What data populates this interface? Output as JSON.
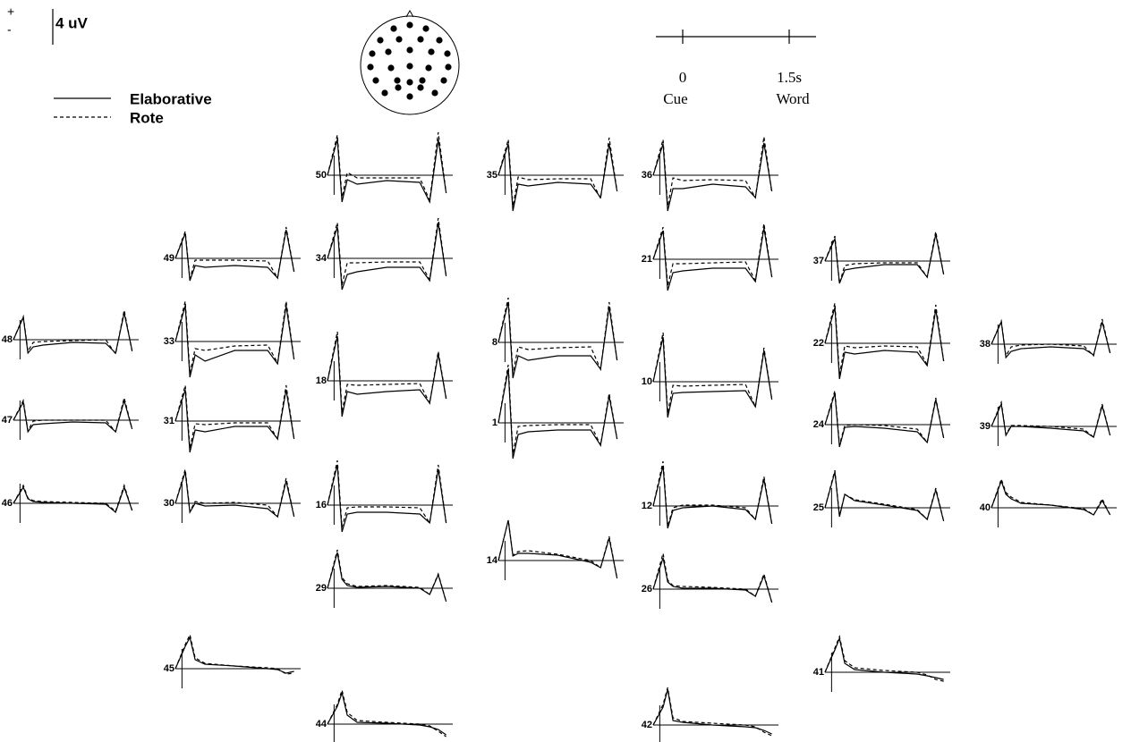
{
  "chart_data": {
    "type": "erp",
    "plus_label": "+",
    "minus_label": "-",
    "scale_label": "4 uV",
    "time_labels": [
      "0",
      "1.5s"
    ],
    "event_labels": [
      "Cue",
      "Word"
    ],
    "series": [
      {
        "name": "Elaborative",
        "color": "#000",
        "dash": "none"
      },
      {
        "name": "Rote",
        "color": "#000",
        "dash": "4 3"
      }
    ],
    "x": [
      -0.1,
      0.05,
      0.12,
      0.2,
      0.35,
      0.8,
      1.3,
      1.45,
      1.58,
      1.7
    ],
    "channels": [
      {
        "label": "50",
        "elaborative": [
          0,
          4,
          -3,
          -0.5,
          -1,
          -0.6,
          -0.8,
          -3,
          4,
          -2
        ],
        "rote": [
          0,
          4.5,
          -2.5,
          0.3,
          -0.3,
          -0.3,
          -0.3,
          -2.8,
          4.8,
          -2
        ]
      },
      {
        "label": "35",
        "elaborative": [
          0,
          3.5,
          -4,
          -1,
          -1.2,
          -0.8,
          -1,
          -2.5,
          3.5,
          -1.8
        ],
        "rote": [
          0,
          4,
          -3.5,
          -0.2,
          -0.5,
          -0.4,
          -0.4,
          -2.6,
          4.2,
          -1.8
        ]
      },
      {
        "label": "36",
        "elaborative": [
          0,
          3.5,
          -4,
          -1.5,
          -1.5,
          -1,
          -1.3,
          -2.5,
          3.6,
          -1.8
        ],
        "rote": [
          0,
          4,
          -3.5,
          -0.3,
          -0.6,
          -0.5,
          -0.6,
          -2.5,
          4.3,
          -2
        ]
      },
      {
        "label": "49",
        "elaborative": [
          0,
          2.8,
          -2.5,
          -0.8,
          -1,
          -0.8,
          -1,
          -2.2,
          3.2,
          -1.5
        ],
        "rote": [
          0,
          3,
          -2.3,
          -0.2,
          -0.2,
          -0.2,
          -0.3,
          -2.2,
          3.5,
          -1.5
        ]
      },
      {
        "label": "34",
        "elaborative": [
          0,
          3.5,
          -3.5,
          -1.8,
          -1.5,
          -1,
          -1,
          -2.5,
          4,
          -2
        ],
        "rote": [
          0,
          4,
          -3,
          -0.5,
          -0.5,
          -0.4,
          -0.4,
          -2.4,
          4.5,
          -2
        ]
      },
      {
        "label": "21",
        "elaborative": [
          0,
          3.2,
          -3.5,
          -1.5,
          -1.3,
          -1,
          -1,
          -2.5,
          3.5,
          -2
        ],
        "rote": [
          0,
          3.6,
          -3,
          -0.5,
          -0.5,
          -0.4,
          -0.3,
          -2.4,
          4,
          -2
        ]
      },
      {
        "label": "37",
        "elaborative": [
          0,
          2.5,
          -2.5,
          -1,
          -0.8,
          -0.4,
          -0.4,
          -1.8,
          3,
          -1.5
        ],
        "rote": [
          0,
          2.8,
          -2.5,
          -0.5,
          -0.3,
          -0.2,
          -0.2,
          -1.8,
          3.3,
          -1.5
        ]
      },
      {
        "label": "48",
        "elaborative": [
          0,
          2.5,
          -1.5,
          -0.8,
          -0.6,
          -0.3,
          -0.4,
          -1.5,
          3,
          -1.2
        ],
        "rote": [
          0,
          2.6,
          -1.3,
          -0.3,
          -0.2,
          -0.1,
          0,
          -1.6,
          3.3,
          -1.3
        ]
      },
      {
        "label": "33",
        "elaborative": [
          0,
          4,
          -4,
          -1.5,
          -2.2,
          -1,
          -1,
          -2.5,
          4,
          -2
        ],
        "rote": [
          0,
          4.5,
          -3.5,
          -0.8,
          -1,
          -0.5,
          -0.4,
          -2.4,
          4.5,
          -2
        ]
      },
      {
        "label": "8",
        "elaborative": [
          0,
          4.5,
          -4,
          -1.5,
          -2,
          -1.5,
          -1.5,
          -3,
          4,
          -2
        ],
        "rote": [
          0,
          5,
          -3.5,
          -0.5,
          -0.8,
          -0.6,
          -0.5,
          -3,
          4.5,
          -2
        ]
      },
      {
        "label": "22",
        "elaborative": [
          0,
          4,
          -4,
          -1,
          -1.2,
          -0.8,
          -1,
          -2.5,
          3.8,
          -2
        ],
        "rote": [
          0,
          4.5,
          -3.5,
          -0.3,
          -0.5,
          -0.3,
          -0.4,
          -2.4,
          4.3,
          -2
        ]
      },
      {
        "label": "38",
        "elaborative": [
          0,
          2.5,
          -1.5,
          -0.8,
          -0.5,
          -0.3,
          -0.5,
          -1.2,
          2.5,
          -1
        ],
        "rote": [
          0,
          2.6,
          -1.3,
          -0.3,
          -0.1,
          0,
          -0.2,
          -1.3,
          2.8,
          -1
        ]
      },
      {
        "label": "18",
        "elaborative": [
          0,
          5,
          -4,
          -1.2,
          -1.5,
          -1.2,
          -1,
          -2.5,
          3,
          -2
        ],
        "rote": [
          0,
          5.5,
          -3.5,
          -0.4,
          -0.5,
          -0.4,
          -0.3,
          -2.5,
          3.3,
          -2
        ]
      },
      {
        "label": "10",
        "elaborative": [
          0,
          5,
          -4,
          -1.3,
          -1.2,
          -1.1,
          -1,
          -2.8,
          3.5,
          -2
        ],
        "rote": [
          0,
          5.5,
          -3.5,
          -0.4,
          -0.5,
          -0.4,
          -0.3,
          -2.8,
          3.8,
          -2
        ]
      },
      {
        "label": "47",
        "elaborative": [
          0,
          2,
          -1.3,
          -0.5,
          -0.4,
          -0.2,
          -0.3,
          -1.3,
          2.2,
          -1
        ],
        "rote": [
          0,
          2.2,
          -1.2,
          -0.1,
          0,
          0,
          0,
          -1.3,
          2.5,
          -1
        ]
      },
      {
        "label": "31",
        "elaborative": [
          0,
          3.5,
          -3.5,
          -1,
          -1.2,
          -0.6,
          -0.6,
          -2,
          3.5,
          -2
        ],
        "rote": [
          0,
          4,
          -3,
          -0.3,
          -0.4,
          -0.2,
          -0.2,
          -2,
          4,
          -2
        ]
      },
      {
        "label": "1",
        "elaborative": [
          0,
          6,
          -4,
          -1.3,
          -1,
          -0.8,
          -0.8,
          -2.5,
          3,
          -1.8
        ],
        "rote": [
          0,
          6.5,
          -3.5,
          -0.4,
          -0.3,
          -0.2,
          -0.2,
          -2.5,
          3.3,
          -1.8
        ]
      },
      {
        "label": "24",
        "elaborative": [
          0,
          3.5,
          -2.5,
          -0.3,
          -0.2,
          -0.4,
          -0.8,
          -2,
          2.8,
          -1.5
        ],
        "rote": [
          0,
          3.8,
          -2.3,
          -0.1,
          0,
          -0.1,
          -0.5,
          -2,
          3,
          -1.5
        ]
      },
      {
        "label": "39",
        "elaborative": [
          0,
          2.5,
          -1,
          0,
          0,
          -0.2,
          -0.5,
          -1.2,
          2.3,
          -1
        ],
        "rote": [
          0,
          2.7,
          -0.9,
          0.1,
          0.1,
          0,
          -0.3,
          -1.2,
          2.5,
          -1
        ]
      },
      {
        "label": "46",
        "elaborative": [
          0,
          1.8,
          0.5,
          0.2,
          0.1,
          0,
          -0.1,
          -1,
          1.8,
          -0.8
        ],
        "rote": [
          0,
          2,
          0.6,
          0.3,
          0.2,
          0.1,
          0,
          -0.9,
          2,
          -0.8
        ]
      },
      {
        "label": "30",
        "elaborative": [
          0,
          3.5,
          -1,
          0,
          -0.3,
          -0.2,
          -0.6,
          -1.5,
          2.5,
          -1.5
        ],
        "rote": [
          0,
          3.8,
          -0.9,
          0.2,
          0,
          0.1,
          -0.2,
          -1.5,
          2.8,
          -1.5
        ]
      },
      {
        "label": "16",
        "elaborative": [
          0,
          4.5,
          -3,
          -1,
          -0.8,
          -0.8,
          -1,
          -2,
          4,
          -2
        ],
        "rote": [
          0,
          5,
          -2.5,
          -0.3,
          -0.2,
          -0.2,
          -0.3,
          -2,
          4.5,
          -2
        ]
      },
      {
        "label": "12",
        "elaborative": [
          0,
          4.5,
          -2.5,
          -0.5,
          -0.2,
          0,
          -0.4,
          -1.5,
          3,
          -2
        ],
        "rote": [
          0,
          5,
          -2.3,
          -0.2,
          0.1,
          0.1,
          -0.2,
          -1.5,
          3.3,
          -2
        ]
      },
      {
        "label": "25",
        "elaborative": [
          0,
          4,
          -1,
          1.5,
          0.8,
          0.3,
          -0.3,
          -1.3,
          2,
          -1.5
        ],
        "rote": [
          0,
          4.2,
          -0.9,
          1.5,
          0.9,
          0.4,
          -0.2,
          -1.3,
          2.2,
          -1.5
        ]
      },
      {
        "label": "40",
        "elaborative": [
          0,
          3,
          1.5,
          1,
          0.5,
          0.3,
          -0.2,
          -0.8,
          0.8,
          -0.8
        ],
        "rote": [
          0,
          3.2,
          1.7,
          1.2,
          0.6,
          0.3,
          -0.1,
          -0.8,
          1,
          -0.8
        ]
      },
      {
        "label": "14",
        "elaborative": [
          0,
          4.5,
          0.5,
          0.8,
          0.8,
          0.6,
          -0.2,
          -0.8,
          2.5,
          -2
        ],
        "rote": [
          0,
          4.5,
          0.6,
          1,
          1.1,
          0.7,
          0,
          -0.8,
          2.7,
          -2
        ]
      },
      {
        "label": "29",
        "elaborative": [
          0,
          4,
          1,
          0.3,
          0.1,
          0.2,
          0,
          -0.7,
          1.5,
          -1.5
        ],
        "rote": [
          0,
          4.3,
          1.2,
          0.5,
          0.2,
          0.3,
          0.1,
          -0.7,
          1.6,
          -1.5
        ]
      },
      {
        "label": "26",
        "elaborative": [
          0,
          3.5,
          0.8,
          0.3,
          0.1,
          0.1,
          -0.1,
          -0.8,
          1.5,
          -1.5
        ],
        "rote": [
          0,
          4,
          1,
          0.4,
          0.3,
          0.2,
          0,
          -0.8,
          1.7,
          -1.5
        ]
      },
      {
        "label": "45",
        "elaborative": [
          0,
          2.5,
          3.5,
          1,
          0.5,
          0.3,
          0,
          -0.1,
          -0.5,
          -0.3
        ],
        "rote": [
          0,
          2.7,
          3.8,
          1.2,
          0.6,
          0.3,
          0.1,
          0,
          -0.6,
          -0.5
        ]
      },
      {
        "label": "41",
        "elaborative": [
          0,
          2.5,
          3.8,
          1,
          0.3,
          0,
          -0.2,
          -0.4,
          -0.6,
          -0.8
        ],
        "rote": [
          0,
          2.7,
          4,
          1.3,
          0.5,
          0.2,
          0,
          -0.3,
          -0.8,
          -1
        ]
      },
      {
        "label": "44",
        "elaborative": [
          0,
          2,
          3.5,
          1,
          0.2,
          0.1,
          -0.1,
          -0.3,
          -0.6,
          -1.2
        ],
        "rote": [
          0,
          2.2,
          3.8,
          1.3,
          0.4,
          0.2,
          0,
          -0.2,
          -0.8,
          -1.4
        ]
      },
      {
        "label": "42",
        "elaborative": [
          0,
          2,
          4,
          0.5,
          0.3,
          0,
          -0.2,
          -0.3,
          -0.6,
          -1
        ],
        "rote": [
          0,
          2.3,
          4.2,
          0.8,
          0.4,
          0.2,
          0,
          -0.2,
          -0.8,
          -1.2
        ]
      }
    ]
  }
}
